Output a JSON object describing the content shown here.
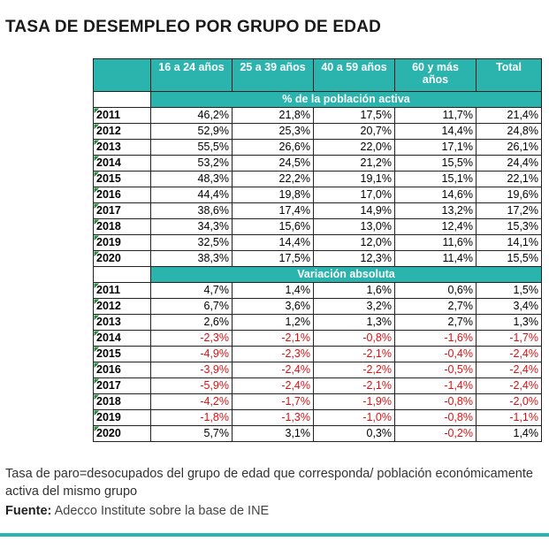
{
  "title": "TASA DE DESEMPLEO POR GRUPO DE EDAD",
  "table": {
    "header": [
      "16 a 24 años",
      "25 a 39 años",
      "40 a 59 años",
      "60 y más años",
      "Total"
    ],
    "sections": [
      {
        "label": "% de la población activa",
        "rows": [
          [
            "2011",
            "46,2%",
            "21,8%",
            "17,5%",
            "11,7%",
            "21,4%"
          ],
          [
            "2012",
            "52,9%",
            "25,3%",
            "20,7%",
            "14,4%",
            "24,8%"
          ],
          [
            "2013",
            "55,5%",
            "26,6%",
            "22,0%",
            "17,1%",
            "26,1%"
          ],
          [
            "2014",
            "53,2%",
            "24,5%",
            "21,2%",
            "15,5%",
            "24,4%"
          ],
          [
            "2015",
            "48,3%",
            "22,2%",
            "19,1%",
            "15,1%",
            "22,1%"
          ],
          [
            "2016",
            "44,4%",
            "19,8%",
            "17,0%",
            "14,6%",
            "19,6%"
          ],
          [
            "2017",
            "38,6%",
            "17,4%",
            "14,9%",
            "13,2%",
            "17,2%"
          ],
          [
            "2018",
            "34,3%",
            "15,6%",
            "13,0%",
            "12,4%",
            "15,3%"
          ],
          [
            "2019",
            "32,5%",
            "14,4%",
            "12,0%",
            "11,6%",
            "14,1%"
          ],
          [
            "2020",
            "38,3%",
            "17,5%",
            "12,3%",
            "11,4%",
            "15,5%"
          ]
        ]
      },
      {
        "label": "Variación absoluta",
        "rows": [
          [
            "2011",
            "4,7%",
            "1,4%",
            "1,6%",
            "0,6%",
            "1,5%"
          ],
          [
            "2012",
            "6,7%",
            "3,6%",
            "3,2%",
            "2,7%",
            "3,4%"
          ],
          [
            "2013",
            "2,6%",
            "1,2%",
            "1,3%",
            "2,7%",
            "1,3%"
          ],
          [
            "2014",
            "-2,3%",
            "-2,1%",
            "-0,8%",
            "-1,6%",
            "-1,7%"
          ],
          [
            "2015",
            "-4,9%",
            "-2,3%",
            "-2,1%",
            "-0,4%",
            "-2,4%"
          ],
          [
            "2016",
            "-3,9%",
            "-2,4%",
            "-2,2%",
            "-0,5%",
            "-2,4%"
          ],
          [
            "2017",
            "-5,9%",
            "-2,4%",
            "-2,1%",
            "-1,4%",
            "-2,4%"
          ],
          [
            "2018",
            "-4,2%",
            "-1,7%",
            "-1,9%",
            "-0,8%",
            "-2,0%"
          ],
          [
            "2019",
            "-1,8%",
            "-1,3%",
            "-1,0%",
            "-0,8%",
            "-1,1%"
          ],
          [
            "2020",
            "5,7%",
            "3,1%",
            "0,3%",
            "-0,2%",
            "1,4%"
          ]
        ]
      }
    ]
  },
  "note": "Tasa de paro=desocupados del grupo de edad que corresponda/ población económicamente activa del mismo grupo",
  "source": {
    "label": "Fuente:",
    "text": "Adecco Institute sobre la base de INE"
  }
}
